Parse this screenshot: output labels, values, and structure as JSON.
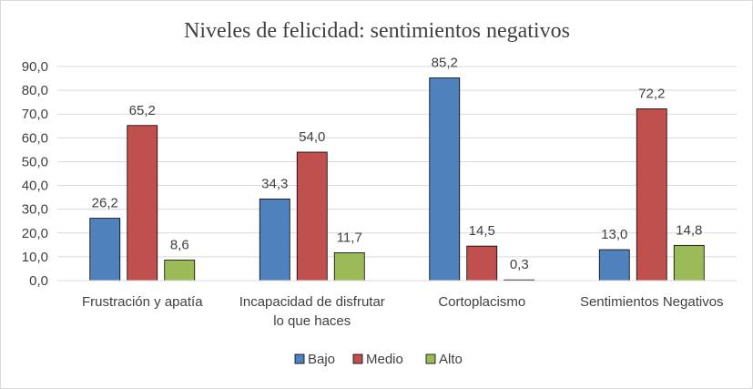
{
  "chart_data": {
    "type": "bar",
    "title": "Niveles  de felicidad:  sentimientos negativos",
    "categories": [
      [
        "Frustración y apatía"
      ],
      [
        "Incapacidad de disfrutar",
        "lo que haces"
      ],
      [
        "Cortoplacismo"
      ],
      [
        "Sentimientos Negativos"
      ]
    ],
    "series": [
      {
        "name": "Bajo",
        "color": "#4f81bd",
        "values": [
          26.2,
          34.3,
          85.2,
          13.0
        ]
      },
      {
        "name": "Medio",
        "color": "#c0504d",
        "values": [
          65.2,
          54.0,
          14.5,
          72.2
        ]
      },
      {
        "name": "Alto",
        "color": "#9bbb59",
        "values": [
          8.6,
          11.7,
          0.3,
          14.8
        ]
      }
    ],
    "yticks": [
      "0,0",
      "10,0",
      "20,0",
      "30,0",
      "40,0",
      "50,0",
      "60,0",
      "70,0",
      "80,0",
      "90,0"
    ],
    "ylim": [
      0,
      90
    ],
    "grid": true,
    "legend": "bottom",
    "data_labels": true
  }
}
